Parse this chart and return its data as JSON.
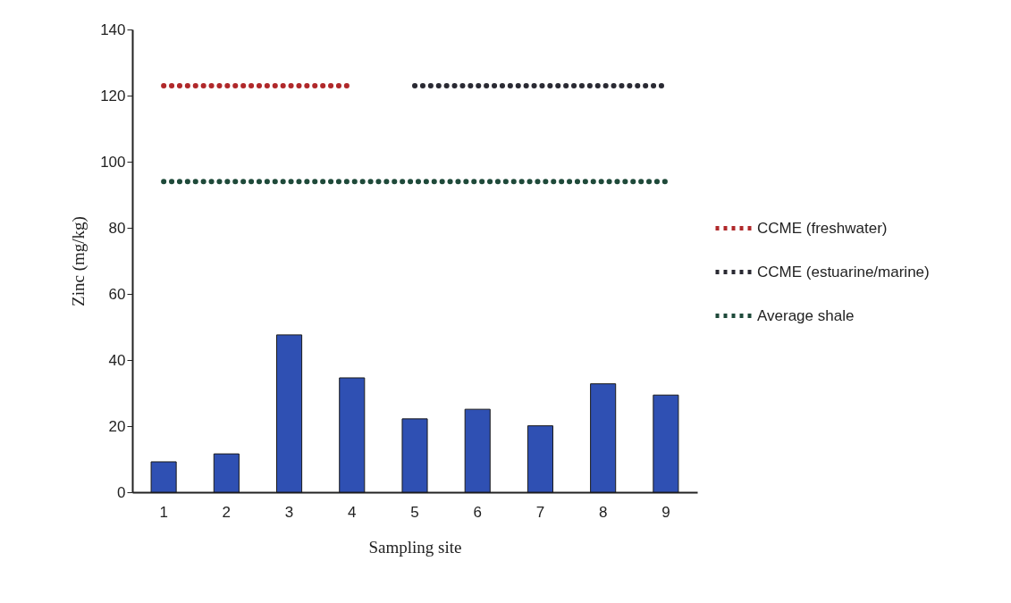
{
  "chart_data": {
    "type": "bar",
    "xlabel": "Sampling site",
    "ylabel": "Zinc (mg/kg)",
    "categories": [
      "1",
      "2",
      "3",
      "4",
      "5",
      "6",
      "7",
      "8",
      "9"
    ],
    "ylim": [
      0,
      140
    ],
    "yticks": [
      0,
      20,
      40,
      60,
      80,
      100,
      120,
      140
    ],
    "grid": false,
    "legend": "right",
    "series": [
      {
        "color": "#2f50b3",
        "values": [
          9.2,
          11.6,
          47.6,
          34.6,
          22.2,
          25.1,
          20.1,
          32.8,
          29.4
        ]
      },
      {
        "type": "line",
        "name": "CCME (freshwater)",
        "color": "#b0282a",
        "line_style": "dotted",
        "marker": "none",
        "values": [
          123,
          123,
          123,
          123,
          null,
          null,
          null,
          null,
          null
        ]
      },
      {
        "type": "line",
        "name": "CCME (estuarine/marine)",
        "color": "#2a2a33",
        "line_style": "dotted",
        "marker": "none",
        "values": [
          null,
          null,
          null,
          null,
          123,
          123,
          123,
          123,
          123
        ]
      },
      {
        "type": "line",
        "name": "Average shale",
        "color": "#1f4a3a",
        "line_style": "dotted",
        "marker": "none",
        "values": [
          94,
          94,
          94,
          94,
          94,
          94,
          94,
          94,
          94
        ]
      }
    ]
  }
}
